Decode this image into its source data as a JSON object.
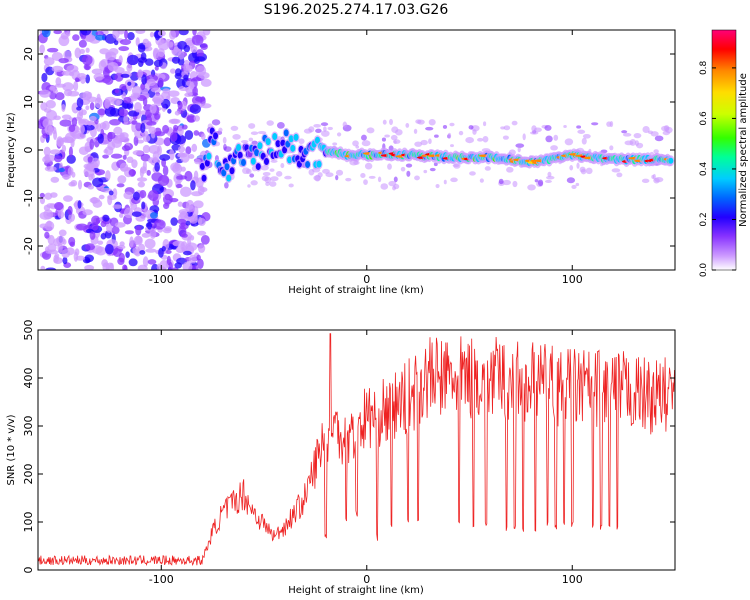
{
  "figure_title": "S196.2025.274.17.03.G26",
  "chart_data": [
    {
      "type": "heatmap",
      "title": "S196.2025.274.17.03.G26",
      "xlabel": "Height of straight line (km)",
      "ylabel": "Frequency (Hz)",
      "xlim": [
        -160,
        150
      ],
      "ylim": [
        -25,
        25
      ],
      "xticks": [
        -100,
        0,
        100
      ],
      "yticks": [
        20,
        10,
        0,
        -10,
        -20
      ],
      "colorbar": {
        "label": "Normalized spectral amplitude",
        "range": [
          0,
          0.95
        ],
        "ticks": [
          0.0,
          0.2,
          0.4,
          0.6,
          0.8
        ],
        "colormap": [
          "#ffffff",
          "#cc99ff",
          "#8833ff",
          "#2200ff",
          "#0066ff",
          "#00ccff",
          "#00ff99",
          "#33ff00",
          "#ccff00",
          "#ffdd00",
          "#ff8800",
          "#ff0000",
          "#ff0077"
        ]
      },
      "description_points": {
        "noise_region_km": [
          -160,
          -80
        ],
        "signal_track_center_hz": [
          [
            -80,
            -4
          ],
          [
            -75,
            2
          ],
          [
            -70,
            -4
          ],
          [
            -60,
            -2
          ],
          [
            -50,
            0
          ],
          [
            -40,
            1
          ],
          [
            -30,
            -1
          ],
          [
            -20,
            0
          ],
          [
            -10,
            -1
          ],
          [
            0,
            -1
          ],
          [
            10,
            -1
          ],
          [
            20,
            -1
          ],
          [
            40,
            -1.5
          ],
          [
            60,
            -1.5
          ],
          [
            80,
            -2.5
          ],
          [
            90,
            -2
          ],
          [
            100,
            -1
          ],
          [
            110,
            -1.5
          ],
          [
            120,
            -2
          ],
          [
            140,
            -2
          ]
        ]
      }
    },
    {
      "type": "line",
      "xlabel": "Height of straight line (km)",
      "ylabel": "SNR (10 * v/v)",
      "xlim": [
        -160,
        150
      ],
      "ylim": [
        0,
        500
      ],
      "xticks": [
        -100,
        0,
        100
      ],
      "yticks": [
        0,
        100,
        200,
        300,
        400,
        500
      ],
      "series": [
        {
          "name": "SNR",
          "color": "#ee2222",
          "envelope": [
            [
              -160,
              20
            ],
            [
              -80,
              20
            ],
            [
              -75,
              80
            ],
            [
              -70,
              120
            ],
            [
              -60,
              160
            ],
            [
              -55,
              120
            ],
            [
              -45,
              70
            ],
            [
              -40,
              90
            ],
            [
              -30,
              150
            ],
            [
              -25,
              220
            ],
            [
              -20,
              280
            ],
            [
              -15,
              300
            ],
            [
              -10,
              270
            ],
            [
              0,
              320
            ],
            [
              10,
              330
            ],
            [
              20,
              360
            ],
            [
              30,
              400
            ],
            [
              40,
              400
            ],
            [
              60,
              400
            ],
            [
              80,
              390
            ],
            [
              100,
              380
            ],
            [
              120,
              380
            ],
            [
              140,
              360
            ],
            [
              150,
              370
            ]
          ],
          "dips": [
            [
              -20,
              60
            ],
            [
              -10,
              100
            ],
            [
              -5,
              110
            ],
            [
              5,
              60
            ],
            [
              12,
              80
            ],
            [
              20,
              90
            ],
            [
              25,
              100
            ],
            [
              45,
              90
            ],
            [
              52,
              90
            ],
            [
              58,
              90
            ],
            [
              68,
              80
            ],
            [
              72,
              85
            ],
            [
              76,
              80
            ],
            [
              82,
              80
            ],
            [
              88,
              90
            ],
            [
              92,
              85
            ],
            [
              96,
              90
            ],
            [
              100,
              90
            ],
            [
              110,
              80
            ],
            [
              114,
              80
            ],
            [
              118,
              80
            ],
            [
              122,
              80
            ]
          ]
        }
      ]
    }
  ]
}
